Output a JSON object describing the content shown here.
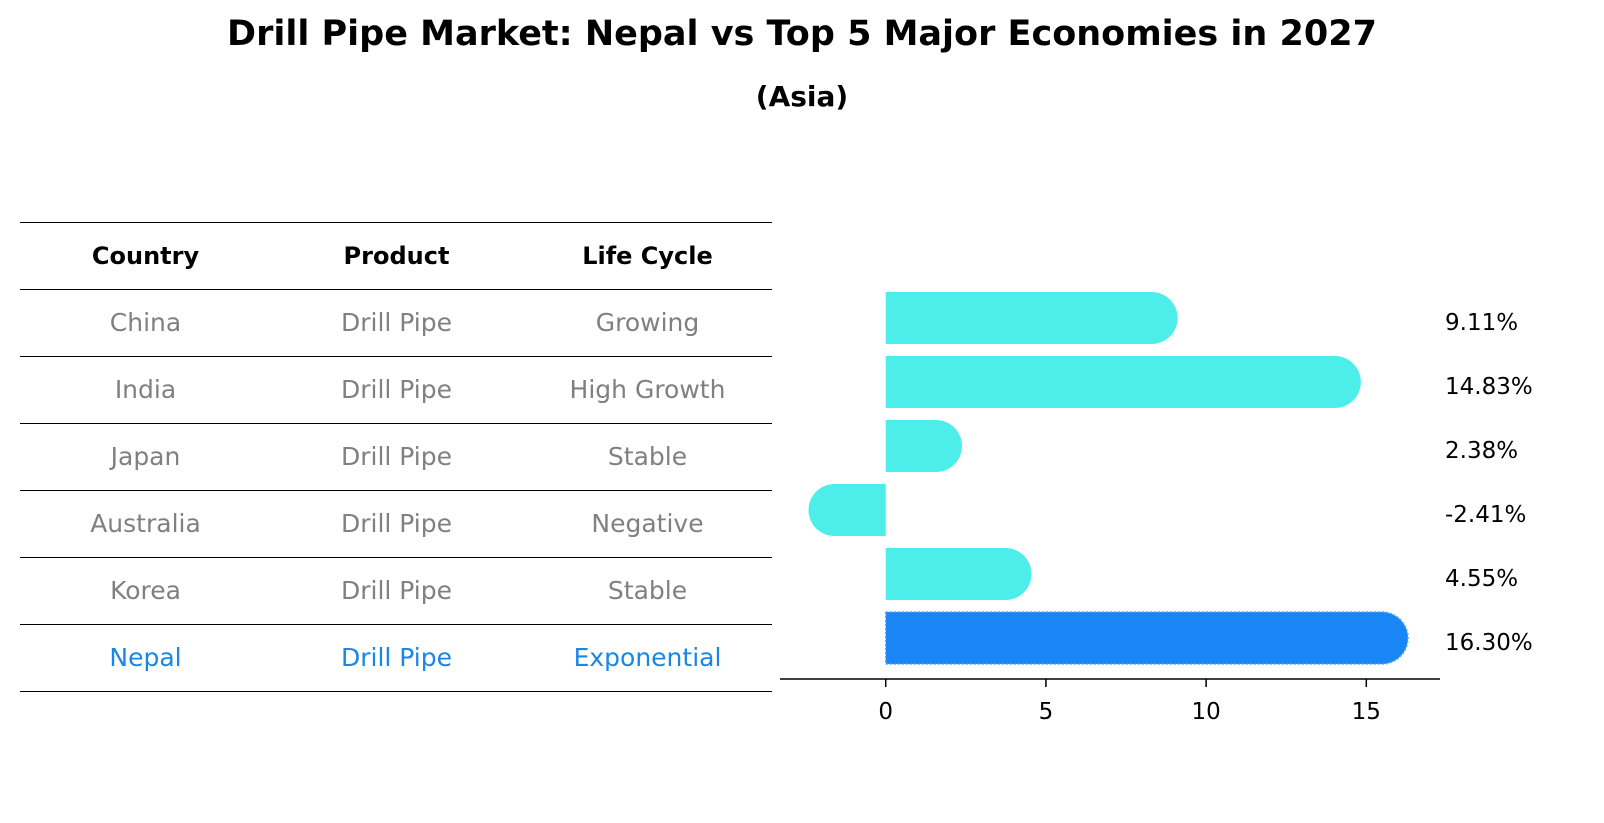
{
  "title": "Drill Pipe Market: Nepal vs Top 5 Major Economies in 2027",
  "subtitle": "(Asia)",
  "table": {
    "headers": [
      "Country",
      "Product",
      "Life Cycle"
    ],
    "rows": [
      [
        "China",
        "Drill Pipe",
        "Growing"
      ],
      [
        "India",
        "Drill Pipe",
        "High Growth"
      ],
      [
        "Japan",
        "Drill Pipe",
        "Stable"
      ],
      [
        "Australia",
        "Drill Pipe",
        "Negative"
      ],
      [
        "Korea",
        "Drill Pipe",
        "Stable"
      ],
      [
        "Nepal",
        "Drill Pipe",
        "Exponential"
      ]
    ],
    "highlight_row": 5
  },
  "chart_data": {
    "type": "bar",
    "orientation": "horizontal",
    "categories": [
      "China",
      "India",
      "Japan",
      "Australia",
      "Korea",
      "Nepal"
    ],
    "values": [
      9.11,
      14.83,
      2.38,
      -2.41,
      4.55,
      16.3
    ],
    "labels": [
      "9.11%",
      "14.83%",
      "2.38%",
      "-2.41%",
      "4.55%",
      "16.30%"
    ],
    "xlim": [
      -3.3,
      17.3
    ],
    "xticks": [
      0,
      5,
      10,
      15
    ],
    "xlabel": "",
    "ylabel": "",
    "grid": false,
    "colors": {
      "default": "#4deee9",
      "highlight": "#1a86f5"
    },
    "highlight_index": 5
  }
}
